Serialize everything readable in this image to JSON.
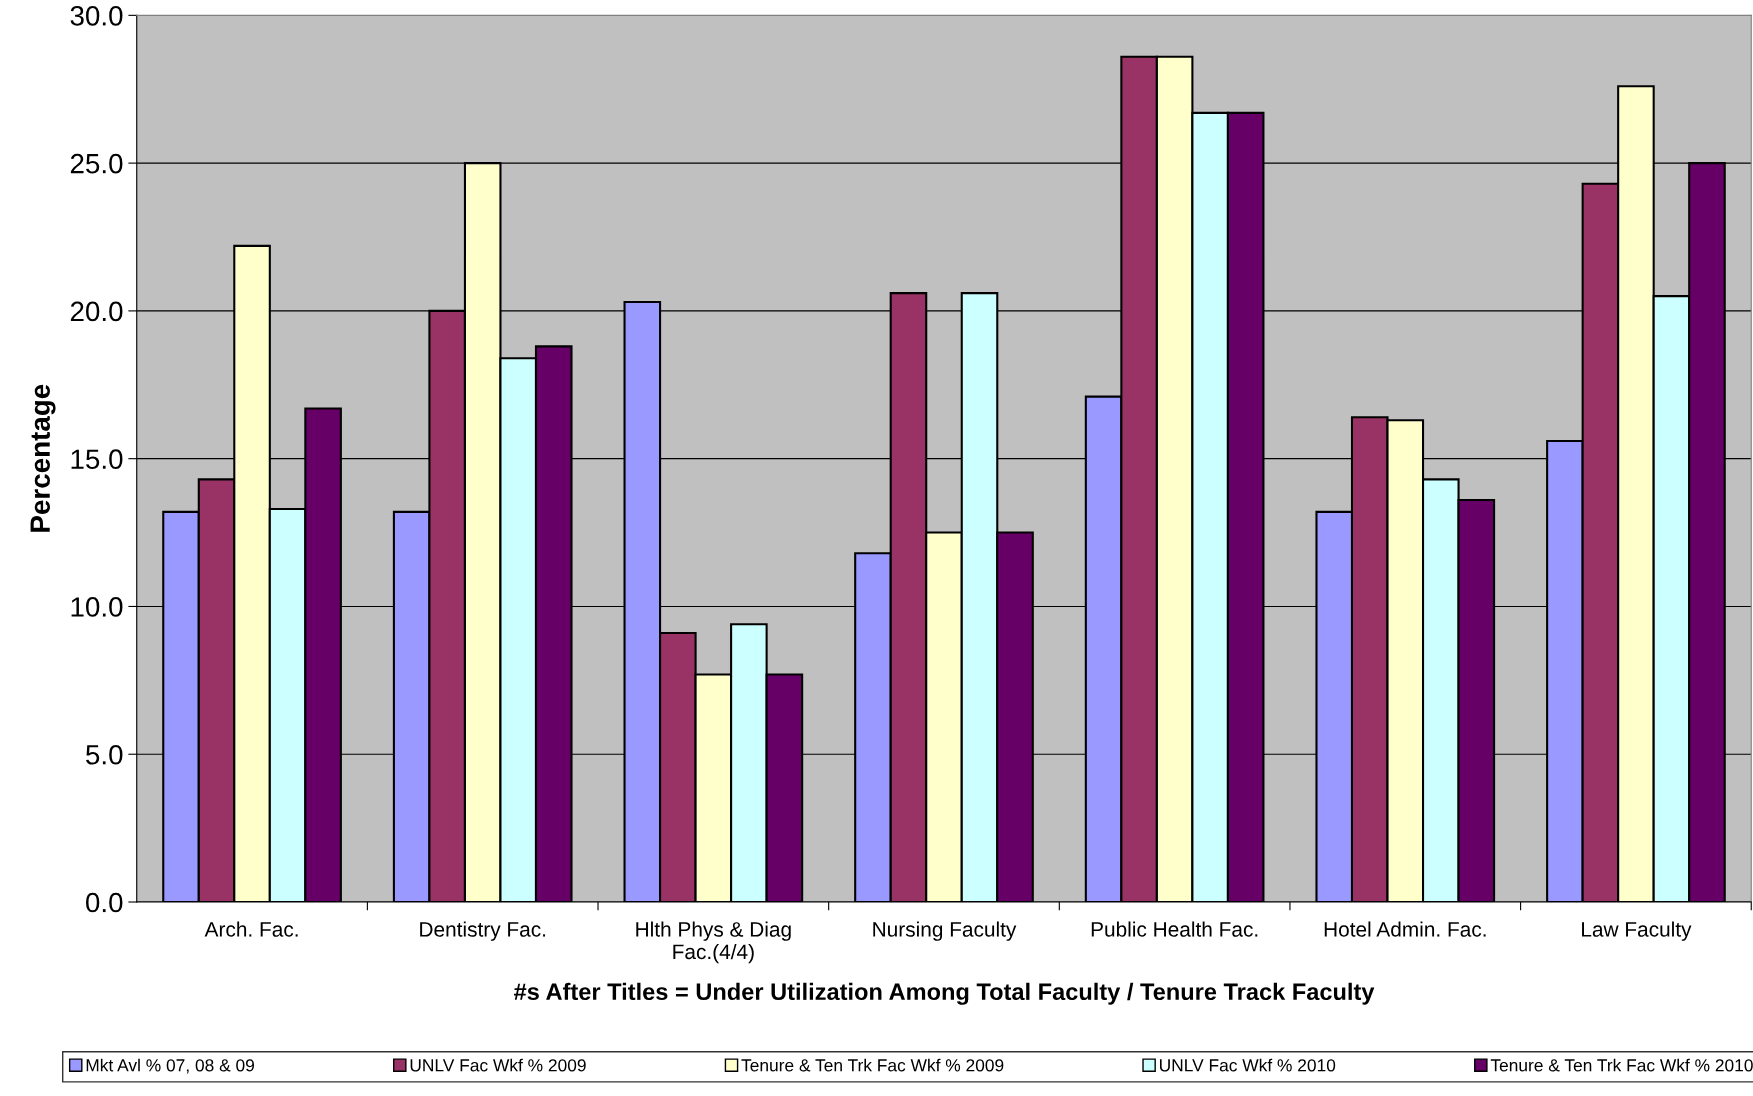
{
  "chart_data": {
    "type": "bar",
    "xlabel": "#s After Titles = Under Utilization Among Total Faculty / Tenure Track Faculty",
    "ylabel": "Percentage",
    "categories": [
      "Arch. Fac.",
      "Dentistry Fac.",
      "Hlth Phys & Diag\nFac.(4/4)",
      "Nursing Faculty",
      "Public Health Fac.",
      "Hotel Admin. Fac.",
      "Law Faculty"
    ],
    "series": [
      {
        "name": "Mkt Avl % 07, 08 & 09",
        "color": "#9999ff",
        "values": [
          13.2,
          13.2,
          20.3,
          11.8,
          17.1,
          13.2,
          15.6
        ]
      },
      {
        "name": "UNLV Fac Wkf % 2009",
        "color": "#993366",
        "values": [
          14.3,
          20.0,
          9.1,
          20.6,
          28.6,
          16.4,
          24.3
        ]
      },
      {
        "name": "Tenure & Ten Trk Fac Wkf % 2009",
        "color": "#ffffcc",
        "values": [
          22.2,
          25.0,
          7.7,
          12.5,
          28.6,
          16.3,
          27.6
        ]
      },
      {
        "name": "UNLV Fac Wkf % 2010",
        "color": "#ccffff",
        "values": [
          13.3,
          18.4,
          9.4,
          20.6,
          26.7,
          14.3,
          20.5
        ]
      },
      {
        "name": "Tenure & Ten Trk Fac Wkf % 2010",
        "color": "#660066",
        "values": [
          16.7,
          18.8,
          7.7,
          12.5,
          26.7,
          13.6,
          25.0
        ]
      }
    ],
    "ylim": [
      0,
      30
    ],
    "yticks": [
      {
        "value": 0,
        "label": "0.0"
      },
      {
        "value": 5,
        "label": "5.0"
      },
      {
        "value": 10,
        "label": "10.0"
      },
      {
        "value": 15,
        "label": "15.0"
      },
      {
        "value": 20,
        "label": "20.0"
      },
      {
        "value": 25,
        "label": "25.0"
      },
      {
        "value": 30,
        "label": "30.0"
      }
    ],
    "grid": "y",
    "legend": "bottom"
  }
}
